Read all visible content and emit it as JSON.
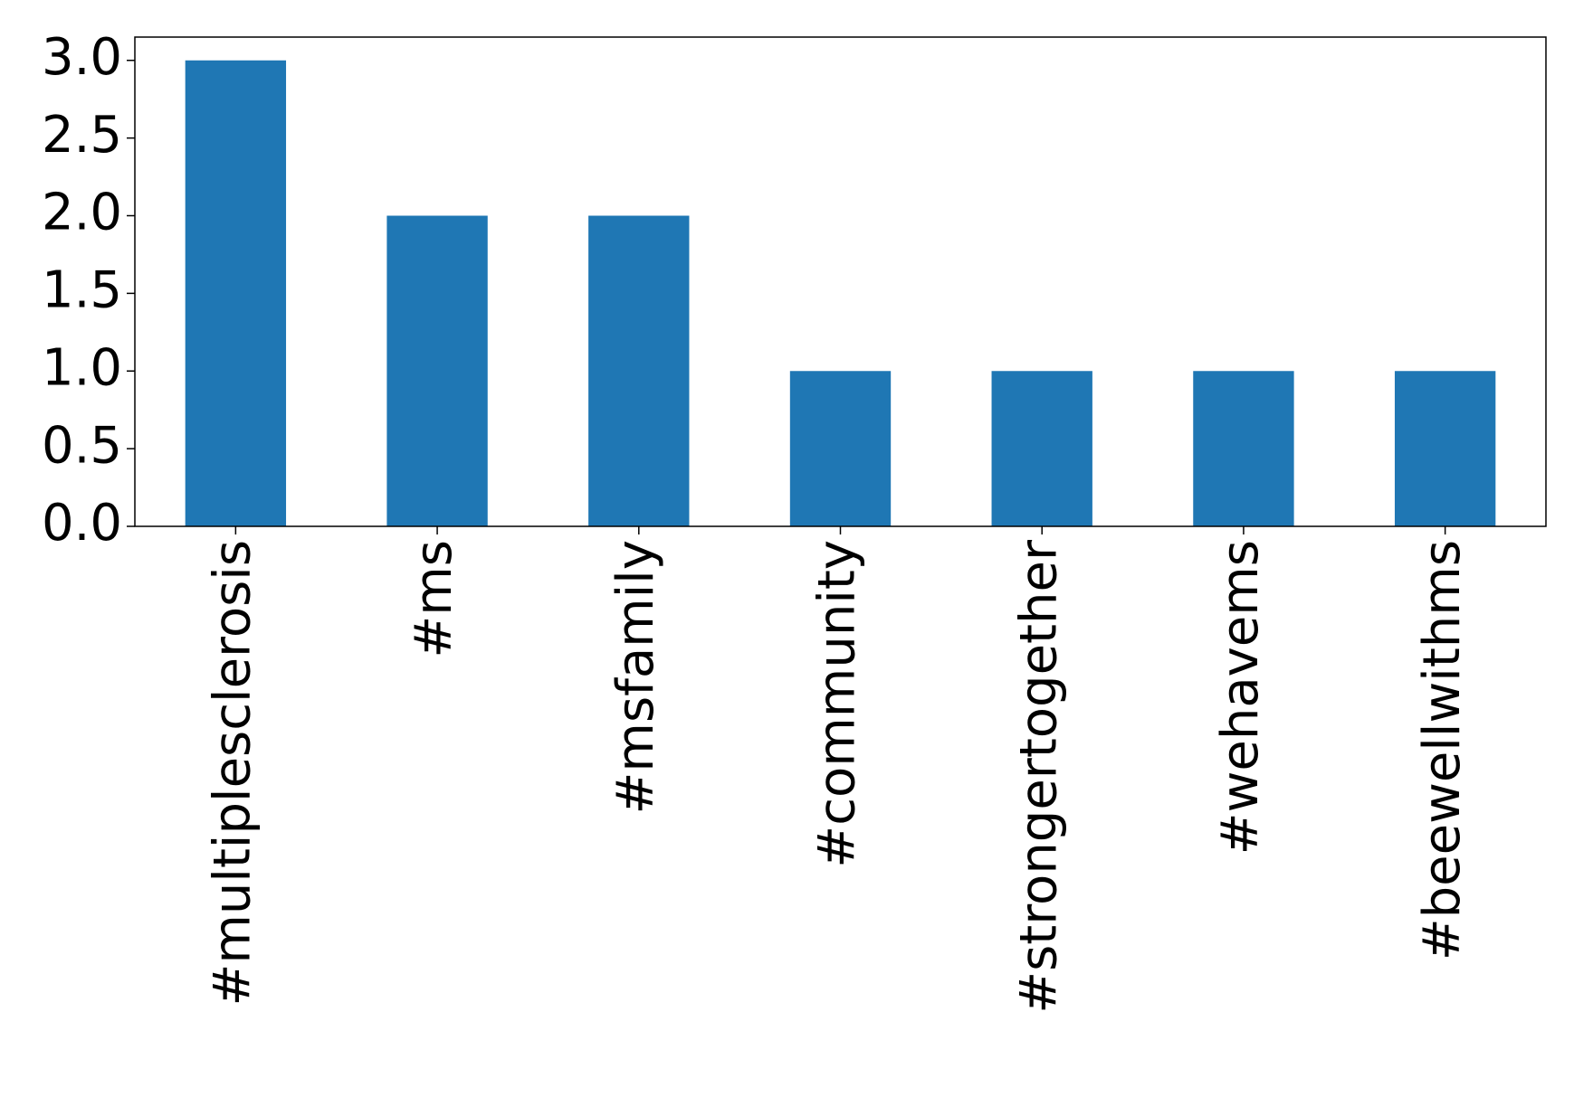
{
  "chart_data": {
    "type": "bar",
    "categories": [
      "#multiplesclerosis",
      "#ms",
      "#msfamily",
      "#community",
      "#strongertogether",
      "#wehavems",
      "#beewellwithms"
    ],
    "values": [
      3,
      2,
      2,
      1,
      1,
      1,
      1
    ],
    "color": "#1f77b4",
    "ylim": [
      0,
      3.15
    ],
    "yticks": [
      {
        "value": 0,
        "label": "0.0"
      },
      {
        "value": 0.5,
        "label": "0.5"
      },
      {
        "value": 1,
        "label": "1.0"
      },
      {
        "value": 1.5,
        "label": "1.5"
      },
      {
        "value": 2,
        "label": "2.0"
      },
      {
        "value": 2.5,
        "label": "2.5"
      },
      {
        "value": 3,
        "label": "3.0"
      }
    ],
    "grid": false
  }
}
